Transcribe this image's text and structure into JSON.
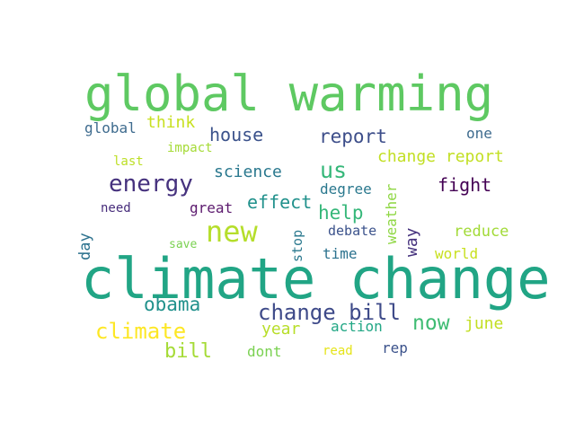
{
  "word_cloud": {
    "words": [
      {
        "text": "global warming",
        "color": "#5ec962"
      },
      {
        "text": "climate change",
        "color": "#21a585"
      },
      {
        "text": "think",
        "color": "#c8e020"
      },
      {
        "text": "global",
        "color": "#3e6b8e"
      },
      {
        "text": "house",
        "color": "#3b528b"
      },
      {
        "text": "report",
        "color": "#3d4e8a"
      },
      {
        "text": "one",
        "color": "#3e6b8e"
      },
      {
        "text": "impact",
        "color": "#a5db36"
      },
      {
        "text": "last",
        "color": "#bddf26"
      },
      {
        "text": "us",
        "color": "#35b779"
      },
      {
        "text": "change report",
        "color": "#c2df23"
      },
      {
        "text": "science",
        "color": "#2a788e"
      },
      {
        "text": "energy",
        "color": "#46327e"
      },
      {
        "text": "fight",
        "color": "#440154"
      },
      {
        "text": "degree",
        "color": "#2a788e"
      },
      {
        "text": "effect",
        "color": "#21918c"
      },
      {
        "text": "need",
        "color": "#472d7b"
      },
      {
        "text": "great",
        "color": "#5c1a6e"
      },
      {
        "text": "help",
        "color": "#35b779"
      },
      {
        "text": "weather",
        "color": "#8fd744"
      },
      {
        "text": "new",
        "color": "#b5de2b"
      },
      {
        "text": "debate",
        "color": "#3b528b"
      },
      {
        "text": "reduce",
        "color": "#a2da37"
      },
      {
        "text": "save",
        "color": "#7ad151"
      },
      {
        "text": "day",
        "color": "#2c728e"
      },
      {
        "text": "stop",
        "color": "#2a788e"
      },
      {
        "text": "time",
        "color": "#2c728e"
      },
      {
        "text": "way",
        "color": "#46327e"
      },
      {
        "text": "world",
        "color": "#c8e020"
      },
      {
        "text": "obama",
        "color": "#21918c"
      },
      {
        "text": "change bill",
        "color": "#3e4a89"
      },
      {
        "text": "climate",
        "color": "#fde725"
      },
      {
        "text": "now",
        "color": "#3fbc73"
      },
      {
        "text": "june",
        "color": "#c2df23"
      },
      {
        "text": "year",
        "color": "#b8de29"
      },
      {
        "text": "action",
        "color": "#22a785"
      },
      {
        "text": "bill",
        "color": "#a5db36"
      },
      {
        "text": "dont",
        "color": "#7ad151"
      },
      {
        "text": "read",
        "color": "#e5e419"
      },
      {
        "text": "rep",
        "color": "#3b528b"
      }
    ]
  }
}
